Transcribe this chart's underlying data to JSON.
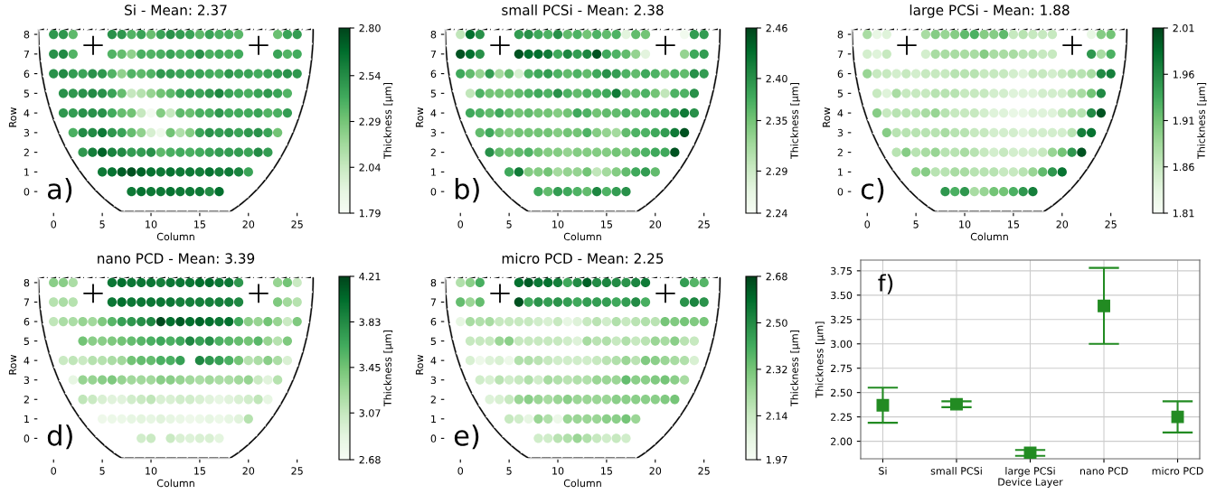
{
  "chart_data": [
    {
      "type": "scatter",
      "title": "Si - Mean: 2.37",
      "xlabel": "Column",
      "ylabel": "Row",
      "clabel": "Thickness [µm]",
      "annotations": [
        "a)"
      ],
      "marker": "circle",
      "xlim": [
        -1.6,
        26.7
      ],
      "ylim": [
        -1.05,
        8.6
      ],
      "xticks": [
        0,
        5,
        10,
        15,
        20,
        25
      ],
      "yticks": [
        0,
        1,
        2,
        3,
        4,
        5,
        6,
        7,
        8
      ],
      "clim": [
        1.79,
        2.8
      ],
      "cticks": [
        1.79,
        2.04,
        2.29,
        2.54,
        {
          "value": 2.8,
          "label": "2.80"
        }
      ],
      "x": [
        0,
        1,
        2,
        6,
        7,
        8,
        9,
        10,
        11,
        12,
        13,
        14,
        15,
        16,
        17,
        18,
        19,
        23,
        24,
        25,
        0,
        1,
        2,
        6,
        7,
        8,
        9,
        10,
        11,
        12,
        13,
        14,
        15,
        16,
        17,
        18,
        19,
        23,
        24,
        25,
        0,
        1,
        2,
        3,
        4,
        5,
        6,
        7,
        8,
        9,
        10,
        11,
        12,
        13,
        14,
        15,
        16,
        17,
        18,
        19,
        20,
        21,
        22,
        23,
        24,
        25,
        1,
        2,
        3,
        4,
        5,
        6,
        7,
        8,
        9,
        10,
        11,
        12,
        13,
        14,
        15,
        16,
        17,
        18,
        19,
        20,
        21,
        22,
        23,
        24,
        1,
        2,
        3,
        4,
        5,
        6,
        7,
        8,
        9,
        10,
        11,
        12,
        13,
        14,
        15,
        16,
        17,
        18,
        19,
        20,
        21,
        22,
        23,
        24,
        2,
        3,
        4,
        5,
        6,
        7,
        8,
        9,
        10,
        11,
        12,
        13,
        14,
        15,
        16,
        17,
        18,
        19,
        20,
        21,
        22,
        23,
        3,
        4,
        5,
        6,
        7,
        8,
        9,
        10,
        11,
        12,
        13,
        14,
        15,
        16,
        17,
        18,
        19,
        20,
        21,
        22,
        5,
        6,
        7,
        8,
        9,
        10,
        11,
        12,
        13,
        14,
        15,
        16,
        17,
        18,
        19,
        20,
        8,
        9,
        10,
        11,
        12,
        13,
        14,
        15,
        16,
        17
      ],
      "values": [
        8,
        8,
        8,
        8,
        8,
        8,
        8,
        8,
        8,
        8,
        8,
        8,
        8,
        8,
        8,
        8,
        8,
        8,
        8,
        8,
        7,
        7,
        7,
        7,
        7,
        7,
        7,
        7,
        7,
        7,
        7,
        7,
        7,
        7,
        7,
        7,
        7,
        7,
        7,
        7,
        6,
        6,
        6,
        6,
        6,
        6,
        6,
        6,
        6,
        6,
        6,
        6,
        6,
        6,
        6,
        6,
        6,
        6,
        6,
        6,
        6,
        6,
        6,
        6,
        6,
        6,
        5,
        5,
        5,
        5,
        5,
        5,
        5,
        5,
        5,
        5,
        5,
        5,
        5,
        5,
        5,
        5,
        5,
        5,
        5,
        5,
        5,
        5,
        5,
        5,
        4,
        4,
        4,
        4,
        4,
        4,
        4,
        4,
        4,
        4,
        4,
        4,
        4,
        4,
        4,
        4,
        4,
        4,
        4,
        4,
        4,
        4,
        4,
        4,
        3,
        3,
        3,
        3,
        3,
        3,
        3,
        3,
        3,
        3,
        3,
        3,
        3,
        3,
        3,
        3,
        3,
        3,
        3,
        3,
        3,
        3,
        2,
        2,
        2,
        2,
        2,
        2,
        2,
        2,
        2,
        2,
        2,
        2,
        2,
        2,
        2,
        2,
        2,
        2,
        2,
        2,
        1,
        1,
        1,
        1,
        1,
        1,
        1,
        1,
        1,
        1,
        1,
        1,
        1,
        1,
        1,
        1,
        0,
        0,
        0,
        0,
        0,
        0,
        0,
        0,
        0,
        0
      ],
      "cvalues": [
        2.5,
        2.5,
        2.35,
        2.52,
        2.5,
        2.38,
        2.45,
        2.32,
        2.45,
        2.52,
        2.48,
        2.45,
        2.35,
        2.45,
        2.4,
        2.4,
        2.36,
        2.32,
        2.45,
        2.48,
        2.52,
        2.55,
        2.38,
        2.38,
        2.33,
        2.22,
        2.4,
        2.38,
        2.4,
        2.45,
        2.4,
        2.42,
        2.52,
        2.4,
        2.42,
        2.4,
        2.42,
        2.45,
        2.38,
        2.42,
        2.52,
        2.55,
        2.48,
        2.45,
        2.52,
        2.5,
        2.38,
        2.22,
        2.38,
        2.35,
        2.38,
        2.5,
        2.48,
        2.45,
        2.45,
        2.45,
        2.42,
        2.4,
        2.5,
        2.45,
        2.45,
        2.42,
        2.45,
        2.48,
        2.52,
        2.5,
        2.52,
        2.5,
        2.52,
        2.55,
        2.52,
        2.45,
        2.33,
        2.05,
        2.1,
        2.2,
        2.3,
        2.35,
        2.45,
        2.48,
        2.45,
        2.5,
        2.57,
        2.45,
        2.42,
        2.4,
        2.45,
        2.5,
        2.45,
        2.38,
        2.5,
        2.48,
        2.52,
        2.52,
        2.52,
        2.42,
        2.33,
        2.3,
        2.05,
        1.82,
        2.25,
        2.05,
        2.35,
        2.32,
        2.4,
        2.4,
        2.5,
        2.42,
        2.42,
        2.42,
        2.45,
        2.38,
        2.4,
        2.48,
        2.4,
        2.55,
        2.55,
        2.62,
        2.5,
        2.45,
        2.33,
        2.22,
        1.98,
        1.85,
        2.3,
        2.12,
        2.25,
        2.45,
        2.52,
        2.48,
        2.5,
        2.45,
        2.5,
        2.52,
        2.45,
        2.3,
        2.5,
        2.6,
        2.7,
        2.58,
        2.55,
        2.48,
        2.48,
        2.52,
        2.35,
        2.4,
        2.42,
        2.4,
        2.42,
        2.45,
        2.48,
        2.48,
        2.48,
        2.45,
        2.55,
        2.48,
        2.62,
        2.65,
        2.72,
        2.76,
        2.7,
        2.65,
        2.62,
        2.65,
        2.62,
        2.62,
        2.6,
        2.65,
        2.6,
        2.62,
        2.58,
        2.45,
        2.62,
        2.65,
        2.62,
        2.62,
        2.65,
        2.62,
        2.62,
        2.62,
        2.55,
        2.66
      ]
    },
    {
      "type": "scatter",
      "title": "small PCSi - Mean: 2.38",
      "xlabel": "Column",
      "ylabel": "Row",
      "clabel": "Thickness [µm]",
      "annotations": [
        "b)"
      ],
      "marker": "circle",
      "xlim": [
        -1.6,
        26.7
      ],
      "ylim": [
        -1.05,
        8.6
      ],
      "xticks": [
        0,
        5,
        10,
        15,
        20,
        25
      ],
      "yticks": [
        0,
        1,
        2,
        3,
        4,
        5,
        6,
        7,
        8
      ],
      "clim": [
        2.24,
        2.46
      ],
      "cticks": [
        2.24,
        2.29,
        2.35,
        {
          "value": 2.4,
          "label": "2.40"
        },
        2.46
      ],
      "x": [
        0,
        1,
        2,
        6,
        7,
        8,
        9,
        10,
        11,
        12,
        13,
        14,
        15,
        16,
        17,
        18,
        19,
        23,
        24,
        25,
        0,
        1,
        2,
        6,
        7,
        8,
        9,
        10,
        11,
        12,
        13,
        14,
        15,
        16,
        17,
        18,
        19,
        23,
        24,
        25,
        0,
        1,
        2,
        3,
        4,
        5,
        6,
        7,
        8,
        9,
        10,
        11,
        12,
        13,
        14,
        15,
        16,
        17,
        18,
        19,
        20,
        21,
        22,
        23,
        24,
        25,
        1,
        2,
        3,
        4,
        5,
        6,
        7,
        8,
        9,
        10,
        11,
        12,
        13,
        14,
        15,
        16,
        17,
        18,
        19,
        20,
        21,
        22,
        23,
        24,
        1,
        2,
        3,
        4,
        5,
        6,
        7,
        8,
        9,
        10,
        11,
        12,
        13,
        14,
        15,
        16,
        17,
        18,
        19,
        20,
        21,
        22,
        23,
        24,
        2,
        3,
        4,
        5,
        6,
        7,
        8,
        9,
        10,
        11,
        12,
        13,
        14,
        15,
        16,
        17,
        18,
        19,
        20,
        21,
        22,
        23,
        3,
        4,
        5,
        6,
        7,
        8,
        9,
        10,
        11,
        12,
        13,
        14,
        15,
        16,
        17,
        18,
        19,
        20,
        21,
        22,
        5,
        6,
        7,
        8,
        9,
        10,
        11,
        12,
        13,
        14,
        15,
        16,
        17,
        18,
        19,
        20,
        8,
        9,
        10,
        11,
        12,
        13,
        14,
        15,
        16,
        17
      ],
      "values": [
        8,
        8,
        8,
        8,
        8,
        8,
        8,
        8,
        8,
        8,
        8,
        8,
        8,
        8,
        8,
        8,
        8,
        8,
        8,
        8,
        7,
        7,
        7,
        7,
        7,
        7,
        7,
        7,
        7,
        7,
        7,
        7,
        7,
        7,
        7,
        7,
        7,
        7,
        7,
        7,
        6,
        6,
        6,
        6,
        6,
        6,
        6,
        6,
        6,
        6,
        6,
        6,
        6,
        6,
        6,
        6,
        6,
        6,
        6,
        6,
        6,
        6,
        6,
        6,
        6,
        6,
        5,
        5,
        5,
        5,
        5,
        5,
        5,
        5,
        5,
        5,
        5,
        5,
        5,
        5,
        5,
        5,
        5,
        5,
        5,
        5,
        5,
        5,
        5,
        5,
        4,
        4,
        4,
        4,
        4,
        4,
        4,
        4,
        4,
        4,
        4,
        4,
        4,
        4,
        4,
        4,
        4,
        4,
        4,
        4,
        4,
        4,
        4,
        4,
        3,
        3,
        3,
        3,
        3,
        3,
        3,
        3,
        3,
        3,
        3,
        3,
        3,
        3,
        3,
        3,
        3,
        3,
        3,
        3,
        3,
        3,
        2,
        2,
        2,
        2,
        2,
        2,
        2,
        2,
        2,
        2,
        2,
        2,
        2,
        2,
        2,
        2,
        2,
        2,
        2,
        2,
        1,
        1,
        1,
        1,
        1,
        1,
        1,
        1,
        1,
        1,
        1,
        1,
        1,
        1,
        1,
        1,
        0,
        0,
        0,
        0,
        0,
        0,
        0,
        0,
        0,
        0
      ],
      "cvalues": [
        2.3,
        2.43,
        2.4,
        2.39,
        2.4,
        2.38,
        2.37,
        2.4,
        2.36,
        2.37,
        2.35,
        2.37,
        2.36,
        2.37,
        2.27,
        2.36,
        2.35,
        2.25,
        2.39,
        2.39,
        2.45,
        2.43,
        2.4,
        2.45,
        2.43,
        2.43,
        2.42,
        2.38,
        2.41,
        2.39,
        2.41,
        2.45,
        2.38,
        2.37,
        2.36,
        2.33,
        2.27,
        2.33,
        2.38,
        2.39,
        2.38,
        2.36,
        2.33,
        2.39,
        2.32,
        2.36,
        2.28,
        2.37,
        2.38,
        2.39,
        2.37,
        2.36,
        2.37,
        2.36,
        2.38,
        2.4,
        2.39,
        2.37,
        2.36,
        2.38,
        2.37,
        2.35,
        2.37,
        2.36,
        2.4,
        2.39,
        2.3,
        2.37,
        2.35,
        2.35,
        2.35,
        2.36,
        2.37,
        2.38,
        2.37,
        2.4,
        2.37,
        2.36,
        2.37,
        2.37,
        2.38,
        2.42,
        2.36,
        2.36,
        2.37,
        2.35,
        2.3,
        2.37,
        2.37,
        2.4,
        2.38,
        2.37,
        2.36,
        2.38,
        2.36,
        2.35,
        2.36,
        2.35,
        2.35,
        2.34,
        2.35,
        2.38,
        2.37,
        2.35,
        2.36,
        2.36,
        2.37,
        2.36,
        2.37,
        2.37,
        2.38,
        2.39,
        2.42,
        2.4,
        2.36,
        2.38,
        2.35,
        2.34,
        2.35,
        2.35,
        2.35,
        2.35,
        2.34,
        2.35,
        2.35,
        2.37,
        2.34,
        2.33,
        2.32,
        2.36,
        2.37,
        2.37,
        2.38,
        2.39,
        2.42,
        2.45,
        2.4,
        2.36,
        2.35,
        2.36,
        2.37,
        2.35,
        2.34,
        2.34,
        2.33,
        2.34,
        2.34,
        2.34,
        2.34,
        2.35,
        2.34,
        2.36,
        2.37,
        2.38,
        2.38,
        2.45,
        2.38,
        2.42,
        2.34,
        2.34,
        2.35,
        2.32,
        2.33,
        2.33,
        2.35,
        2.3,
        2.32,
        2.34,
        2.36,
        2.38,
        2.39,
        2.36,
        2.38,
        2.36,
        2.39,
        2.38,
        2.37,
        2.36,
        2.41,
        2.37,
        2.39,
        2.4
      ]
    },
    {
      "type": "scatter",
      "title": "large PCSi - Mean: 1.88",
      "xlabel": "Column",
      "ylabel": "Row",
      "clabel": "Thickness [µm]",
      "annotations": [
        "c)"
      ],
      "marker": "circle",
      "xlim": [
        -1.6,
        26.7
      ],
      "ylim": [
        -1.05,
        8.6
      ],
      "xticks": [
        0,
        5,
        10,
        15,
        20,
        25
      ],
      "yticks": [
        0,
        1,
        2,
        3,
        4,
        5,
        6,
        7,
        8
      ],
      "clim": [
        1.81,
        2.01
      ],
      "cticks": [
        1.81,
        1.86,
        1.91,
        1.96,
        2.01
      ],
      "x": [
        0,
        1,
        2,
        6,
        7,
        8,
        9,
        10,
        11,
        12,
        13,
        14,
        15,
        16,
        17,
        18,
        19,
        23,
        24,
        25,
        0,
        1,
        2,
        6,
        7,
        8,
        9,
        10,
        11,
        12,
        13,
        14,
        15,
        16,
        17,
        18,
        19,
        23,
        24,
        25,
        0,
        1,
        2,
        3,
        4,
        5,
        6,
        7,
        8,
        9,
        10,
        11,
        12,
        13,
        14,
        15,
        16,
        17,
        18,
        19,
        20,
        21,
        22,
        23,
        24,
        25,
        1,
        2,
        3,
        4,
        5,
        6,
        7,
        8,
        9,
        10,
        11,
        12,
        13,
        14,
        15,
        16,
        17,
        18,
        19,
        20,
        21,
        22,
        23,
        24,
        1,
        2,
        3,
        4,
        5,
        6,
        7,
        8,
        9,
        10,
        11,
        12,
        13,
        14,
        15,
        16,
        17,
        18,
        19,
        20,
        21,
        22,
        23,
        24,
        2,
        3,
        4,
        5,
        6,
        7,
        8,
        9,
        10,
        11,
        12,
        13,
        14,
        15,
        16,
        17,
        18,
        19,
        20,
        21,
        22,
        23,
        3,
        4,
        5,
        6,
        7,
        8,
        9,
        10,
        11,
        12,
        13,
        14,
        15,
        16,
        17,
        18,
        19,
        20,
        21,
        22,
        5,
        6,
        7,
        8,
        9,
        10,
        11,
        12,
        13,
        14,
        15,
        16,
        17,
        18,
        19,
        20,
        8,
        9,
        10,
        11,
        12,
        13,
        14,
        15,
        16,
        17
      ],
      "values": [
        8,
        8,
        8,
        8,
        8,
        8,
        8,
        8,
        8,
        8,
        8,
        8,
        8,
        8,
        8,
        8,
        8,
        8,
        8,
        8,
        7,
        7,
        7,
        7,
        7,
        7,
        7,
        7,
        7,
        7,
        7,
        7,
        7,
        7,
        7,
        7,
        7,
        7,
        7,
        7,
        6,
        6,
        6,
        6,
        6,
        6,
        6,
        6,
        6,
        6,
        6,
        6,
        6,
        6,
        6,
        6,
        6,
        6,
        6,
        6,
        6,
        6,
        6,
        6,
        6,
        6,
        5,
        5,
        5,
        5,
        5,
        5,
        5,
        5,
        5,
        5,
        5,
        5,
        5,
        5,
        5,
        5,
        5,
        5,
        5,
        5,
        5,
        5,
        5,
        5,
        4,
        4,
        4,
        4,
        4,
        4,
        4,
        4,
        4,
        4,
        4,
        4,
        4,
        4,
        4,
        4,
        4,
        4,
        4,
        4,
        4,
        4,
        4,
        4,
        3,
        3,
        3,
        3,
        3,
        3,
        3,
        3,
        3,
        3,
        3,
        3,
        3,
        3,
        3,
        3,
        3,
        3,
        3,
        3,
        3,
        3,
        2,
        2,
        2,
        2,
        2,
        2,
        2,
        2,
        2,
        2,
        2,
        2,
        2,
        2,
        2,
        2,
        2,
        2,
        2,
        2,
        1,
        1,
        1,
        1,
        1,
        1,
        1,
        1,
        1,
        1,
        1,
        1,
        1,
        1,
        1,
        1,
        0,
        0,
        0,
        0,
        0,
        0,
        0,
        0,
        0,
        0
      ],
      "cvalues": [
        1.88,
        1.83,
        1.84,
        1.88,
        1.9,
        1.89,
        1.9,
        1.92,
        1.93,
        1.9,
        1.9,
        1.92,
        1.86,
        1.87,
        1.86,
        1.86,
        1.86,
        1.83,
        1.9,
        1.91,
        1.85,
        1.84,
        1.86,
        1.85,
        1.88,
        1.88,
        1.88,
        1.88,
        1.88,
        1.9,
        1.88,
        1.88,
        1.88,
        1.87,
        1.87,
        1.86,
        1.86,
        1.95,
        1.88,
        1.93,
        1.89,
        1.86,
        1.86,
        1.85,
        1.86,
        1.85,
        1.86,
        1.86,
        1.86,
        1.87,
        1.87,
        1.87,
        1.86,
        1.86,
        1.86,
        1.85,
        1.84,
        1.86,
        1.86,
        1.85,
        1.86,
        1.87,
        1.87,
        1.88,
        1.96,
        1.97,
        1.86,
        1.84,
        1.88,
        1.86,
        1.86,
        1.86,
        1.87,
        1.87,
        1.87,
        1.86,
        1.86,
        1.86,
        1.85,
        1.85,
        1.84,
        1.84,
        1.84,
        1.85,
        1.85,
        1.85,
        1.87,
        1.88,
        1.91,
        1.96,
        1.9,
        1.86,
        1.87,
        1.87,
        1.87,
        1.88,
        1.89,
        1.87,
        1.86,
        1.86,
        1.86,
        1.85,
        1.84,
        1.84,
        1.83,
        1.83,
        1.84,
        1.84,
        1.84,
        1.86,
        1.87,
        1.87,
        1.96,
        2.0,
        1.9,
        1.87,
        1.87,
        1.87,
        1.87,
        1.87,
        1.88,
        1.87,
        1.87,
        1.86,
        1.86,
        1.85,
        1.85,
        1.85,
        1.84,
        1.85,
        1.85,
        1.85,
        1.85,
        1.87,
        1.97,
        1.98,
        1.87,
        1.9,
        1.87,
        1.88,
        1.89,
        1.87,
        1.87,
        1.88,
        1.87,
        1.86,
        1.85,
        1.86,
        1.85,
        1.85,
        1.85,
        1.86,
        1.89,
        1.91,
        1.95,
        2.0,
        1.89,
        1.9,
        1.87,
        1.87,
        1.88,
        1.88,
        1.87,
        1.87,
        1.87,
        1.86,
        1.86,
        1.87,
        1.89,
        1.92,
        1.95,
        1.98,
        1.95,
        1.93,
        1.95,
        1.88,
        1.89,
        1.91,
        1.91,
        1.93,
        1.95,
        1.97
      ]
    },
    {
      "type": "scatter",
      "title": "nano PCD - Mean: 3.39",
      "xlabel": "Column",
      "ylabel": "Row",
      "clabel": "Thickness [µm]",
      "annotations": [
        "d)"
      ],
      "marker": "circle",
      "xlim": [
        -1.6,
        26.7
      ],
      "ylim": [
        -1.05,
        8.6
      ],
      "xticks": [
        0,
        5,
        10,
        15,
        20,
        25
      ],
      "yticks": [
        0,
        1,
        2,
        3,
        4,
        5,
        6,
        7,
        8
      ],
      "clim": [
        2.68,
        4.21
      ],
      "cticks": [
        2.68,
        3.07,
        3.45,
        3.83,
        4.21
      ],
      "x": [
        0,
        1,
        2,
        6,
        7,
        8,
        9,
        10,
        11,
        12,
        13,
        14,
        15,
        16,
        17,
        18,
        19,
        23,
        24,
        25,
        0,
        1,
        2,
        6,
        7,
        8,
        9,
        10,
        11,
        12,
        13,
        14,
        15,
        16,
        17,
        18,
        19,
        23,
        24,
        25,
        0,
        1,
        2,
        3,
        4,
        5,
        6,
        7,
        8,
        9,
        10,
        11,
        12,
        13,
        14,
        15,
        16,
        17,
        18,
        19,
        20,
        21,
        22,
        23,
        24,
        25,
        3,
        4,
        5,
        6,
        7,
        8,
        9,
        10,
        11,
        12,
        13,
        14,
        15,
        16,
        17,
        18,
        19,
        20,
        21,
        22,
        23,
        24,
        1,
        2,
        3,
        4,
        5,
        6,
        7,
        8,
        9,
        10,
        11,
        12,
        13,
        15,
        16,
        17,
        18,
        19,
        20,
        21,
        22,
        23,
        24,
        2,
        3,
        4,
        5,
        6,
        7,
        8,
        9,
        10,
        11,
        12,
        13,
        14,
        15,
        16,
        17,
        18,
        19,
        20,
        21,
        22,
        23,
        3,
        4,
        5,
        6,
        7,
        8,
        9,
        10,
        11,
        12,
        13,
        14,
        15,
        16,
        17,
        18,
        19,
        20,
        21,
        22,
        5,
        6,
        7,
        8,
        9,
        10,
        11,
        12,
        13,
        14,
        15,
        16,
        17,
        18,
        19,
        20,
        9,
        10,
        12,
        13,
        14,
        15,
        16,
        17
      ],
      "values": [
        8,
        8,
        8,
        8,
        8,
        8,
        8,
        8,
        8,
        8,
        8,
        8,
        8,
        8,
        8,
        8,
        8,
        8,
        8,
        8,
        7,
        7,
        7,
        7,
        7,
        7,
        7,
        7,
        7,
        7,
        7,
        7,
        7,
        7,
        7,
        7,
        7,
        7,
        7,
        7,
        6,
        6,
        6,
        6,
        6,
        6,
        6,
        6,
        6,
        6,
        6,
        6,
        6,
        6,
        6,
        6,
        6,
        6,
        6,
        6,
        6,
        6,
        6,
        6,
        6,
        6,
        5,
        5,
        5,
        5,
        5,
        5,
        5,
        5,
        5,
        5,
        5,
        5,
        5,
        5,
        5,
        5,
        5,
        5,
        5,
        5,
        5,
        5,
        4,
        4,
        4,
        4,
        4,
        4,
        4,
        4,
        4,
        4,
        4,
        4,
        4,
        4,
        4,
        4,
        4,
        4,
        4,
        4,
        4,
        4,
        4,
        3,
        3,
        3,
        3,
        3,
        3,
        3,
        3,
        3,
        3,
        3,
        3,
        3,
        3,
        3,
        3,
        3,
        3,
        3,
        3,
        3,
        3,
        2,
        2,
        2,
        2,
        2,
        2,
        2,
        2,
        2,
        2,
        2,
        2,
        2,
        2,
        2,
        2,
        2,
        2,
        2,
        2,
        1,
        1,
        1,
        1,
        1,
        1,
        1,
        1,
        1,
        1,
        1,
        1,
        1,
        1,
        1,
        1,
        0,
        0,
        0,
        0,
        0,
        0,
        0,
        0
      ],
      "cvalues": [
        3.35,
        3.35,
        3.2,
        3.95,
        4.0,
        3.95,
        3.95,
        3.95,
        3.9,
        3.95,
        3.95,
        3.95,
        4.0,
        4.02,
        3.95,
        3.95,
        3.75,
        3.3,
        3.45,
        3.05,
        3.15,
        3.2,
        3.15,
        3.95,
        4.0,
        3.95,
        3.95,
        3.95,
        3.95,
        3.95,
        3.9,
        3.9,
        3.9,
        3.9,
        3.9,
        3.9,
        3.85,
        3.4,
        3.25,
        3.15,
        3.1,
        3.2,
        3.2,
        3.3,
        3.25,
        3.4,
        3.55,
        3.7,
        3.75,
        3.8,
        3.85,
        4.18,
        4.0,
        4.1,
        4.0,
        4.05,
        4.0,
        3.95,
        4.0,
        3.65,
        3.35,
        3.3,
        3.45,
        3.3,
        3.05,
        3.4,
        3.45,
        3.35,
        3.35,
        3.4,
        3.45,
        3.5,
        3.55,
        3.6,
        3.65,
        3.6,
        3.65,
        3.85,
        3.7,
        3.8,
        3.6,
        3.55,
        3.5,
        3.45,
        3.55,
        3.3,
        3.15,
        3.4,
        3.05,
        3.1,
        3.05,
        3.15,
        3.15,
        3.2,
        3.25,
        3.45,
        3.5,
        3.5,
        3.6,
        3.6,
        3.7,
        3.85,
        3.75,
        3.7,
        3.6,
        3.45,
        3.15,
        3.2,
        3.35,
        3.2,
        2.95,
        2.85,
        3.3,
        3.3,
        3.35,
        3.4,
        3.3,
        3.25,
        3.25,
        3.25,
        3.35,
        3.35,
        3.3,
        3.25,
        3.2,
        3.25,
        3.2,
        3.2,
        3.25,
        3.3,
        3.05,
        2.9,
        3.15,
        3.1,
        3.05,
        2.95,
        2.9,
        2.9,
        3.0,
        3.05,
        3.1,
        2.95,
        2.95,
        3.0,
        3.0,
        2.95,
        2.9,
        2.85,
        2.9,
        2.95,
        3.0,
        3.1,
        2.85,
        2.78,
        2.8,
        2.8,
        2.85,
        2.88,
        2.85,
        2.9,
        2.85,
        2.82,
        2.78,
        2.8,
        2.85,
        2.8,
        2.85,
        2.9,
        3.15,
        3.0,
        3.05,
        3.05,
        2.95,
        2.92,
        2.95,
        2.95,
        2.88
      ]
    },
    {
      "type": "scatter",
      "title": "micro PCD - Mean: 2.25",
      "xlabel": "Column",
      "ylabel": "Row",
      "clabel": "Thickness [µm]",
      "annotations": [
        "e)"
      ],
      "marker": "circle",
      "xlim": [
        -1.6,
        26.7
      ],
      "ylim": [
        -1.05,
        8.6
      ],
      "xticks": [
        0,
        5,
        10,
        15,
        20,
        25
      ],
      "yticks": [
        0,
        1,
        2,
        3,
        4,
        5,
        6,
        7,
        8
      ],
      "clim": [
        1.97,
        2.68
      ],
      "cticks": [
        1.97,
        2.14,
        2.32,
        {
          "value": 2.5,
          "label": "2.50"
        },
        2.68
      ],
      "x": [
        0,
        1,
        2,
        6,
        7,
        8,
        9,
        10,
        11,
        12,
        13,
        14,
        15,
        16,
        17,
        18,
        19,
        23,
        24,
        25,
        0,
        1,
        2,
        6,
        7,
        8,
        9,
        10,
        11,
        12,
        13,
        14,
        15,
        16,
        17,
        18,
        19,
        23,
        24,
        25,
        0,
        1,
        2,
        3,
        4,
        5,
        6,
        7,
        8,
        9,
        10,
        11,
        12,
        13,
        14,
        15,
        16,
        17,
        18,
        19,
        20,
        21,
        22,
        23,
        24,
        25,
        1,
        2,
        3,
        4,
        5,
        6,
        7,
        8,
        9,
        10,
        11,
        12,
        13,
        14,
        15,
        16,
        17,
        18,
        19,
        20,
        21,
        22,
        23,
        24,
        1,
        2,
        3,
        4,
        5,
        6,
        7,
        8,
        9,
        10,
        11,
        12,
        13,
        14,
        15,
        16,
        17,
        18,
        19,
        20,
        21,
        22,
        23,
        24,
        2,
        3,
        4,
        5,
        6,
        7,
        8,
        9,
        10,
        11,
        12,
        13,
        14,
        15,
        16,
        17,
        18,
        19,
        20,
        21,
        22,
        23,
        3,
        4,
        5,
        6,
        7,
        8,
        9,
        10,
        11,
        12,
        13,
        14,
        15,
        16,
        17,
        18,
        19,
        20,
        21,
        22,
        5,
        6,
        7,
        8,
        9,
        10,
        11,
        12,
        13,
        14,
        15,
        16,
        17,
        18,
        8,
        9,
        10,
        11,
        12,
        13,
        14,
        15,
        16,
        17
      ],
      "values": [
        8,
        8,
        8,
        8,
        8,
        8,
        8,
        8,
        8,
        8,
        8,
        8,
        8,
        8,
        8,
        8,
        8,
        8,
        8,
        8,
        7,
        7,
        7,
        7,
        7,
        7,
        7,
        7,
        7,
        7,
        7,
        7,
        7,
        7,
        7,
        7,
        7,
        7,
        7,
        7,
        6,
        6,
        6,
        6,
        6,
        6,
        6,
        6,
        6,
        6,
        6,
        6,
        6,
        6,
        6,
        6,
        6,
        6,
        6,
        6,
        6,
        6,
        6,
        6,
        6,
        6,
        5,
        5,
        5,
        5,
        5,
        5,
        5,
        5,
        5,
        5,
        5,
        5,
        5,
        5,
        5,
        5,
        5,
        5,
        5,
        5,
        5,
        5,
        5,
        5,
        4,
        4,
        4,
        4,
        4,
        4,
        4,
        4,
        4,
        4,
        4,
        4,
        4,
        4,
        4,
        4,
        4,
        4,
        4,
        4,
        4,
        4,
        4,
        4,
        3,
        3,
        3,
        3,
        3,
        3,
        3,
        3,
        3,
        3,
        3,
        3,
        3,
        3,
        3,
        3,
        3,
        3,
        3,
        3,
        3,
        3,
        2,
        2,
        2,
        2,
        2,
        2,
        2,
        2,
        2,
        2,
        2,
        2,
        2,
        2,
        2,
        2,
        2,
        2,
        2,
        2,
        1,
        1,
        1,
        1,
        1,
        1,
        1,
        1,
        1,
        1,
        1,
        1,
        1,
        1,
        0,
        0,
        0,
        0,
        0,
        0,
        0,
        0,
        0,
        0
      ],
      "cvalues": [
        2.2,
        2.28,
        2.4,
        2.58,
        2.63,
        2.56,
        2.58,
        2.54,
        2.42,
        2.5,
        2.62,
        2.5,
        2.52,
        2.5,
        2.48,
        2.52,
        2.55,
        2.45,
        2.38,
        2.38,
        2.35,
        2.25,
        2.35,
        2.65,
        2.42,
        2.48,
        2.45,
        2.48,
        2.45,
        2.42,
        2.45,
        2.45,
        2.45,
        2.42,
        2.45,
        2.5,
        2.4,
        2.48,
        2.52,
        2.48,
        2.05,
        2.22,
        2.2,
        2.22,
        2.15,
        2.15,
        2.15,
        2.15,
        2.12,
        2.1,
        2.15,
        2.05,
        2.08,
        2.15,
        2.18,
        2.12,
        2.2,
        2.15,
        2.18,
        2.2,
        2.18,
        2.32,
        2.3,
        2.32,
        2.3,
        2.32,
        2.15,
        2.15,
        2.15,
        2.25,
        2.28,
        2.15,
        2.15,
        2.15,
        2.15,
        2.15,
        2.12,
        2.08,
        2.22,
        2.18,
        2.2,
        2.15,
        2.2,
        2.15,
        2.18,
        2.25,
        2.22,
        2.28,
        2.18,
        2.15,
        2.1,
        2.02,
        2.08,
        2.1,
        2.02,
        2.2,
        2.2,
        2.18,
        2.15,
        2.12,
        2.12,
        2.12,
        2.12,
        2.15,
        2.18,
        2.2,
        2.25,
        2.18,
        2.3,
        2.28,
        2.25,
        2.22,
        2.2,
        2.1,
        2.12,
        2.1,
        2.18,
        2.12,
        2.15,
        2.2,
        2.12,
        2.22,
        2.2,
        2.18,
        2.2,
        2.2,
        2.25,
        2.25,
        2.25,
        2.35,
        2.28,
        2.28,
        2.3,
        2.32,
        2.28,
        2.22,
        2.08,
        2.1,
        2.15,
        2.25,
        2.28,
        2.25,
        2.22,
        2.25,
        2.28,
        2.25,
        2.25,
        2.25,
        2.25,
        2.28,
        2.28,
        2.28,
        2.28,
        2.28,
        2.3,
        2.32,
        2.15,
        2.12,
        2.05,
        2.25,
        2.2,
        2.02,
        2.25,
        2.25,
        2.25,
        2.25,
        2.28,
        2.28,
        2.32,
        2.25,
        2.12,
        2.12,
        2.18,
        2.2,
        2.25,
        2.2,
        2.15,
        2.12,
        2.15,
        2.12
      ]
    },
    {
      "type": "scatter",
      "xlabel": "Device Layer",
      "ylabel": "Thickness [µm]",
      "annotations": [
        "f)"
      ],
      "marker": "square",
      "grid": true,
      "color": "#228b22",
      "categories": [
        "Si",
        "small PCSi",
        "large PCSi",
        "nano PCD",
        "micro PCD"
      ],
      "values": [
        2.37,
        2.38,
        1.88,
        3.39,
        2.25
      ],
      "errors": [
        0.18,
        0.03,
        0.03,
        0.39,
        0.16
      ],
      "ylim": [
        1.82,
        3.86
      ],
      "yticks": [
        {
          "value": 2.0,
          "label": "2.00"
        },
        2.25,
        {
          "value": 2.5,
          "label": "2.50"
        },
        2.75,
        {
          "value": 3.0,
          "label": "3.00"
        },
        3.25,
        {
          "value": 3.5,
          "label": "3.50"
        },
        3.75
      ]
    }
  ]
}
